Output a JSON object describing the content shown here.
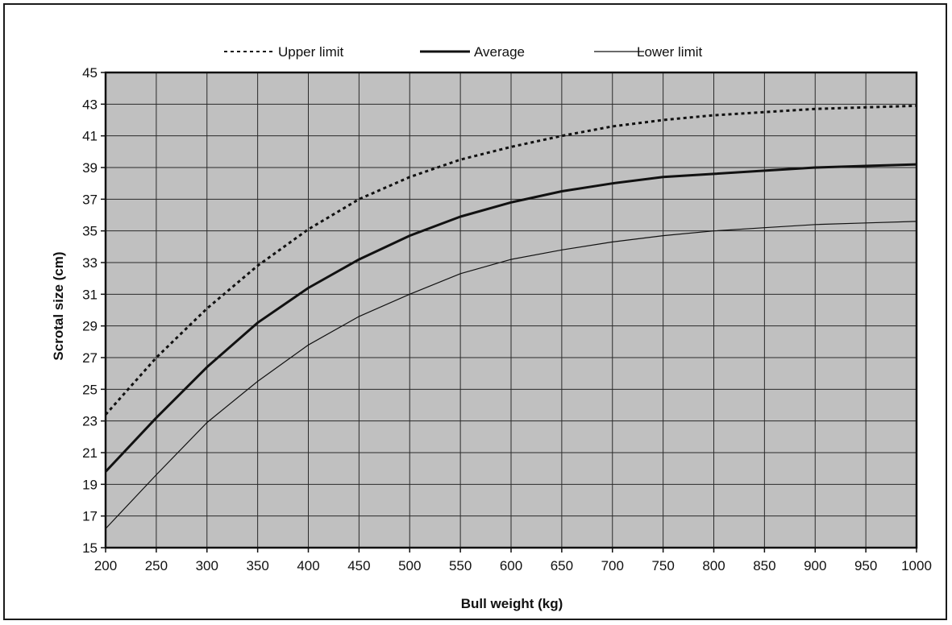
{
  "chart_data": {
    "type": "line",
    "title": "",
    "xlabel": "Bull weight (kg)",
    "ylabel": "Scrotal size (cm)",
    "xlim": [
      200,
      1000
    ],
    "ylim": [
      15,
      45
    ],
    "x_ticks": [
      200,
      250,
      300,
      350,
      400,
      450,
      500,
      550,
      600,
      650,
      700,
      750,
      800,
      850,
      900,
      950,
      1000
    ],
    "y_ticks": [
      15,
      17,
      19,
      21,
      23,
      25,
      27,
      29,
      31,
      33,
      35,
      37,
      39,
      41,
      43,
      45
    ],
    "grid": true,
    "plot_background": "#c0c0c0",
    "legend_position": "top-center",
    "x": [
      200,
      250,
      300,
      350,
      400,
      450,
      500,
      550,
      600,
      650,
      700,
      750,
      800,
      850,
      900,
      950,
      1000
    ],
    "series": [
      {
        "name": "Upper limit",
        "style": "dotted",
        "color": "#111111",
        "values": [
          23.4,
          27.0,
          30.1,
          32.8,
          35.1,
          37.0,
          38.4,
          39.5,
          40.3,
          41.0,
          41.6,
          42.0,
          42.3,
          42.5,
          42.7,
          42.8,
          42.9
        ]
      },
      {
        "name": "Average",
        "style": "thick",
        "color": "#111111",
        "values": [
          19.8,
          23.2,
          26.4,
          29.2,
          31.4,
          33.2,
          34.7,
          35.9,
          36.8,
          37.5,
          38.0,
          38.4,
          38.6,
          38.8,
          39.0,
          39.1,
          39.2
        ]
      },
      {
        "name": "Lower limit",
        "style": "thin",
        "color": "#111111",
        "values": [
          16.2,
          19.6,
          22.9,
          25.5,
          27.8,
          29.6,
          31.0,
          32.3,
          33.2,
          33.8,
          34.3,
          34.7,
          35.0,
          35.2,
          35.4,
          35.5,
          35.6
        ]
      }
    ]
  }
}
